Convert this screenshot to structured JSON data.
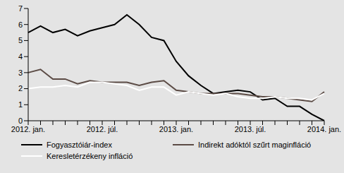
{
  "chart_data": {
    "type": "line",
    "categories": [
      "2012. jan.",
      null,
      null,
      null,
      null,
      null,
      "2012. júl.",
      null,
      null,
      null,
      null,
      null,
      "2013. jan.",
      null,
      null,
      null,
      null,
      null,
      "2013. júl.",
      null,
      null,
      null,
      null,
      null,
      "2014. jan."
    ],
    "ylim": [
      0,
      7
    ],
    "yticks": [
      0,
      1,
      2,
      3,
      4,
      5,
      6,
      7
    ],
    "grid": false,
    "legend": "bottom",
    "series": [
      {
        "name": "Fogyasztóiár-index",
        "color": "#000000",
        "values": [
          5.5,
          5.9,
          5.5,
          5.7,
          5.3,
          5.6,
          5.8,
          6.0,
          6.6,
          6.0,
          5.2,
          5.0,
          3.7,
          2.8,
          2.2,
          1.7,
          1.8,
          1.9,
          1.8,
          1.3,
          1.4,
          0.9,
          0.9,
          0.4,
          0.0
        ]
      },
      {
        "name": "Indirekt adóktól szűrt maginfláció",
        "color": "#5b4b45",
        "values": [
          3.0,
          3.2,
          2.6,
          2.6,
          2.3,
          2.5,
          2.4,
          2.4,
          2.4,
          2.2,
          2.4,
          2.5,
          1.9,
          1.8,
          1.7,
          1.7,
          1.7,
          1.7,
          1.6,
          1.5,
          1.5,
          1.4,
          1.3,
          1.2,
          1.8
        ]
      },
      {
        "name": "Keresletérzékeny infláció",
        "color": "#ffffff",
        "values": [
          2.0,
          2.1,
          2.1,
          2.2,
          2.1,
          2.4,
          2.4,
          2.3,
          2.2,
          1.9,
          2.1,
          2.1,
          1.6,
          1.8,
          1.7,
          1.6,
          1.7,
          1.5,
          1.4,
          1.4,
          1.5,
          1.4,
          1.4,
          1.3,
          1.7
        ]
      }
    ]
  }
}
